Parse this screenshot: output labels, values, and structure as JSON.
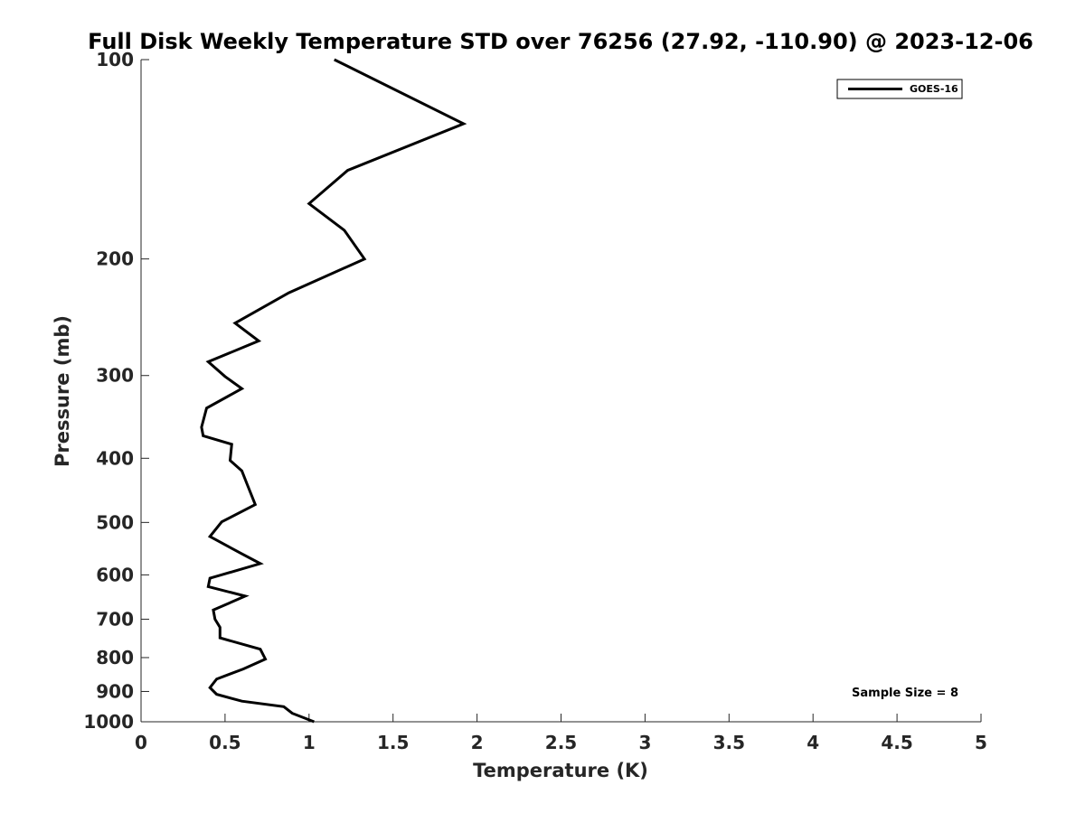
{
  "chart_data": {
    "type": "line",
    "title": "Full Disk Weekly Temperature STD over 76256 (27.92, -110.90) @ 2023-12-06",
    "xlabel": "Temperature (K)",
    "ylabel": "Pressure (mb)",
    "xlim": [
      0,
      5
    ],
    "ylim": [
      100,
      1000
    ],
    "y_scale": "log",
    "y_reversed": true,
    "grid": false,
    "legend_position": "top-right",
    "x_ticks": [
      0,
      0.5,
      1,
      1.5,
      2,
      2.5,
      3,
      3.5,
      4,
      4.5,
      5
    ],
    "x_tick_labels": [
      "0",
      "0.5",
      "1",
      "1.5",
      "2",
      "2.5",
      "3",
      "3.5",
      "4",
      "4.5",
      "5"
    ],
    "y_ticks": [
      100,
      200,
      300,
      400,
      500,
      600,
      700,
      800,
      900,
      1000
    ],
    "y_tick_labels": [
      "100",
      "200",
      "300",
      "400",
      "500",
      "600",
      "700",
      "800",
      "900",
      "1000"
    ],
    "series": [
      {
        "name": "GOES-16",
        "color": "#000000",
        "x": [
          1.15,
          1.92,
          1.23,
          1.0,
          1.21,
          1.33,
          0.88,
          0.56,
          0.7,
          0.4,
          0.5,
          0.6,
          0.39,
          0.36,
          0.37,
          0.54,
          0.53,
          0.6,
          0.63,
          0.68,
          0.48,
          0.41,
          0.59,
          0.71,
          0.41,
          0.4,
          0.62,
          0.43,
          0.44,
          0.47,
          0.47,
          0.71,
          0.74,
          0.61,
          0.45,
          0.41,
          0.45,
          0.6,
          0.85,
          0.9,
          1.03
        ],
        "y": [
          100,
          125,
          147,
          165,
          181,
          200,
          225,
          250,
          266,
          286,
          301,
          314,
          336,
          359,
          370,
          381,
          403,
          418,
          437,
          470,
          499,
          525,
          556,
          577,
          607,
          625,
          646,
          678,
          700,
          720,
          747,
          777,
          804,
          832,
          862,
          888,
          909,
          931,
          949,
          971,
          1000
        ]
      }
    ],
    "annotation": "Sample Size = 8"
  }
}
